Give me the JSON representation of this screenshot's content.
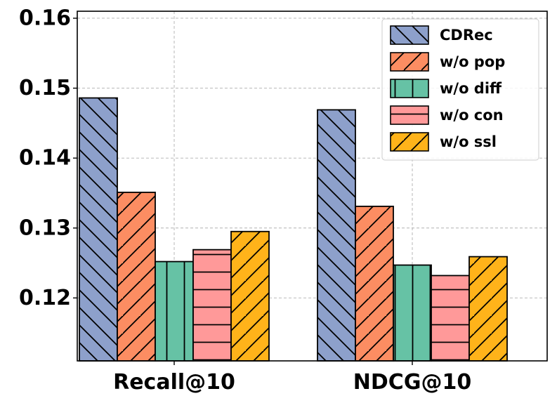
{
  "chart_data": {
    "type": "bar",
    "title": "",
    "xlabel": "",
    "ylabel": "",
    "categories": [
      "Recall@10",
      "NDCG@10"
    ],
    "series": [
      {
        "name": "CDRec",
        "values": [
          0.1486,
          0.1469
        ],
        "color": "#8DA0CB",
        "hatch": "backslash"
      },
      {
        "name": "w/o pop",
        "values": [
          0.1351,
          0.1331
        ],
        "color": "#FC8D62",
        "hatch": "slash"
      },
      {
        "name": "w/o diff",
        "values": [
          0.1252,
          0.1247
        ],
        "color": "#66C2A5",
        "hatch": "vertical"
      },
      {
        "name": "w/o con",
        "values": [
          0.1269,
          0.1232
        ],
        "color": "#FF9999",
        "hatch": "horizontal"
      },
      {
        "name": "w/o ssl",
        "values": [
          0.1295,
          0.1259
        ],
        "color": "#FFB31A",
        "hatch": "slash"
      }
    ],
    "ylim": [
      0.111,
      0.161
    ],
    "yticks": [
      0.12,
      0.13,
      0.14,
      0.15,
      0.16
    ],
    "ytick_labels": [
      "0.12",
      "0.13",
      "0.14",
      "0.15",
      "0.16"
    ],
    "grid": true,
    "legend_position": "top-right"
  }
}
